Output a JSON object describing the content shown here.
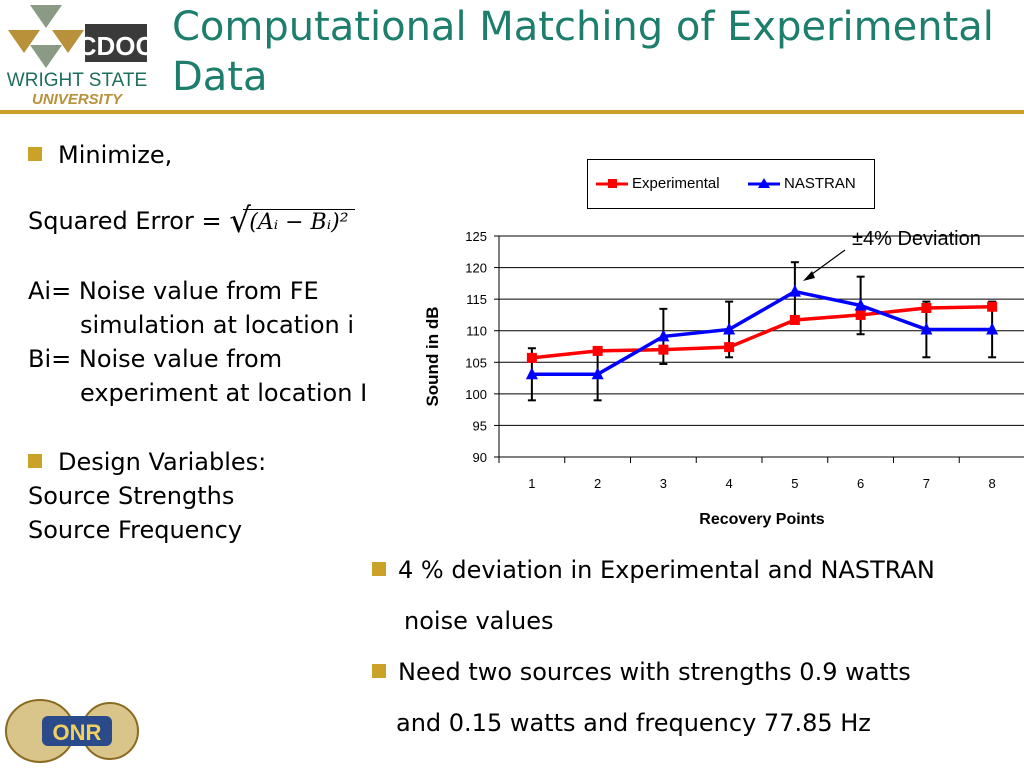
{
  "header": {
    "title": "Computational Matching of Experimental Data",
    "logo_text": "CDOC WRIGHT STATE UNIVERSITY",
    "footer_logo_text": "ONR"
  },
  "left": {
    "bullet1": "Minimize,",
    "sq_label": "Squared Error  =",
    "formula": "(Aᵢ − Bᵢ)²",
    "ai_line1": "Ai= Noise value from FE",
    "ai_line2": "simulation at location i",
    "bi_line1": "Bi= Noise value from",
    "bi_line2": "experiment at location I",
    "bullet2": "Design Variables:",
    "dv1": "Source  Strengths",
    "dv2": "Source Frequency"
  },
  "bottom": {
    "b1_line1": "4 % deviation in Experimental and NASTRAN",
    "b1_line2": "noise values",
    "b2_line1": "Need two sources with strengths 0.9 watts",
    "b2_line2": "and 0.15 watts and frequency 77.85 Hz"
  },
  "chart_data": {
    "type": "line",
    "categories": [
      "1",
      "2",
      "3",
      "4",
      "5",
      "6",
      "7",
      "8"
    ],
    "xlabel": "Recovery Points",
    "ylabel": "Sound in dB",
    "ylim": [
      90,
      125
    ],
    "yticks": [
      "90",
      "95",
      "100",
      "105",
      "110",
      "115",
      "120",
      "125"
    ],
    "grid": true,
    "legend_position": "top",
    "annotation": "±4% Deviation",
    "series": [
      {
        "name": "Experimental",
        "color": "#ff0000",
        "marker": "square",
        "values": [
          105.7,
          106.8,
          107.0,
          107.4,
          111.7,
          112.5,
          113.6,
          113.8
        ]
      },
      {
        "name": "NASTRAN",
        "color": "#0000ff",
        "marker": "triangle",
        "values": [
          103.1,
          103.1,
          109.1,
          110.2,
          116.2,
          114.0,
          110.2,
          110.2
        ],
        "error_percent": 4
      }
    ]
  }
}
